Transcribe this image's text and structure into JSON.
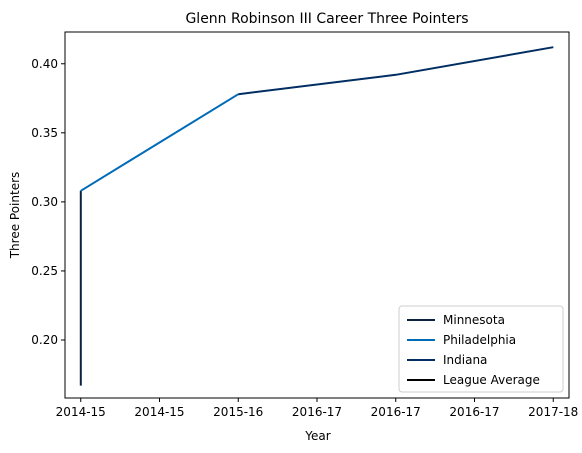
{
  "chart_data": {
    "type": "line",
    "title": "Glenn Robinson III Career Three Pointers",
    "xlabel": "Year",
    "ylabel": "Three Pointers",
    "x_tick_labels": [
      "2014-15",
      "2014-15",
      "2015-16",
      "2016-17",
      "2016-17",
      "2016-17",
      "2017-18"
    ],
    "y_ticks": [
      0.2,
      0.25,
      0.3,
      0.35,
      0.4
    ],
    "y_tick_labels": [
      "0.20",
      "0.25",
      "0.30",
      "0.35",
      "0.40"
    ],
    "xlim": [
      -0.2,
      6.2
    ],
    "ylim": [
      0.158,
      0.423
    ],
    "grid": false,
    "legend_position": "lower-right",
    "series": [
      {
        "name": "Minnesota",
        "color": "#0c2340",
        "points": [
          [
            0,
            0.167
          ],
          [
            0,
            0.308
          ]
        ]
      },
      {
        "name": "Philadelphia",
        "color": "#006bb6",
        "points": [
          [
            0,
            0.308
          ],
          [
            2,
            0.378
          ]
        ]
      },
      {
        "name": "Indiana",
        "color": "#002d62",
        "points": [
          [
            2,
            0.378
          ],
          [
            4,
            0.392
          ],
          [
            6,
            0.412
          ]
        ]
      },
      {
        "name": "League Average",
        "color": "#000000",
        "points": []
      }
    ]
  }
}
